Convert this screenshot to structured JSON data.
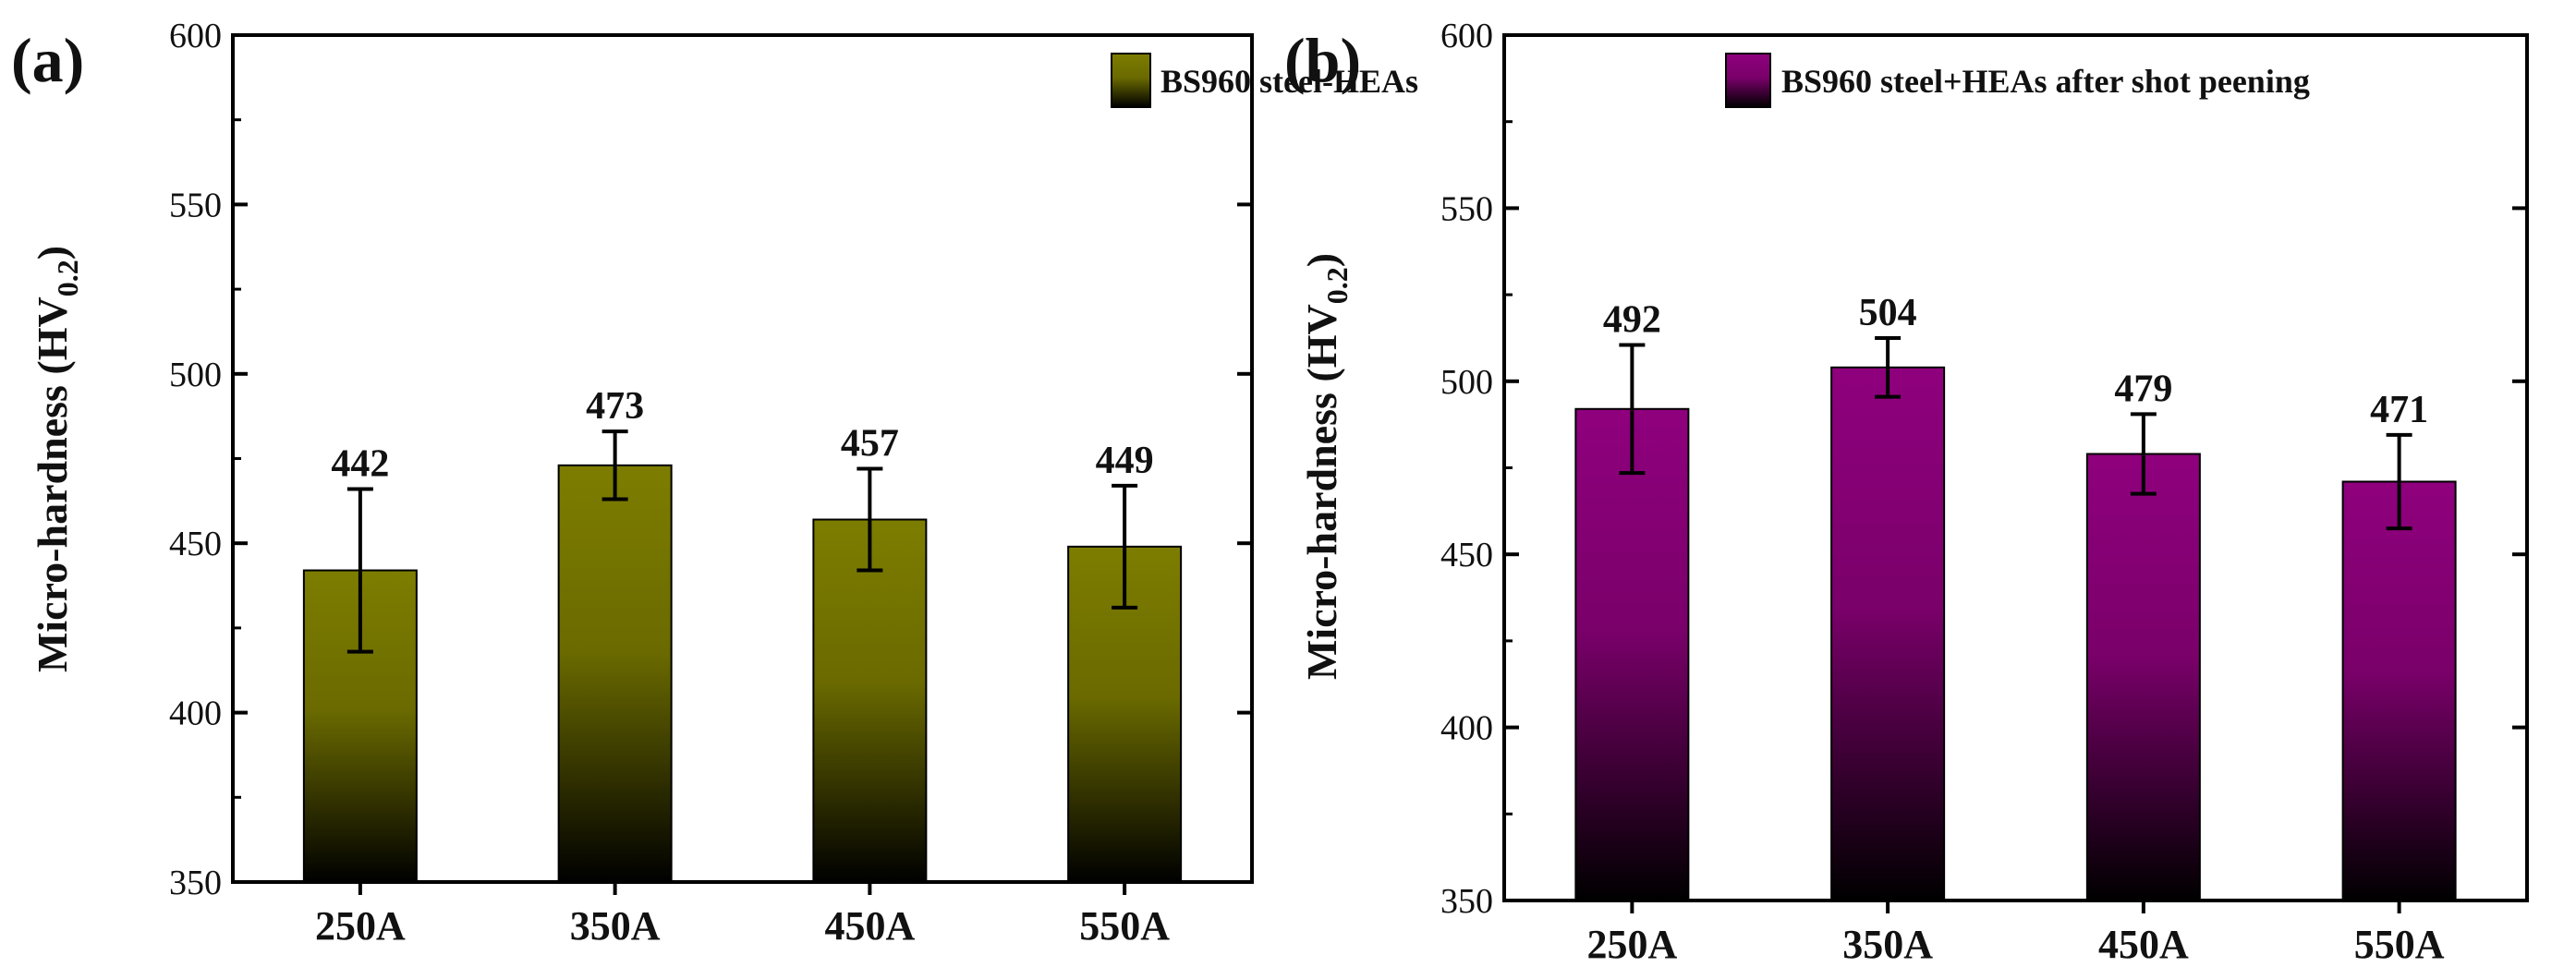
{
  "chart_data": [
    {
      "type": "bar",
      "panel_label": "(a)",
      "title": "",
      "xlabel": "",
      "ylabel_main": "Micro-hardness (HV",
      "ylabel_sub": "0.2",
      "ylabel_close": ")",
      "categories": [
        "250A",
        "350A",
        "450A",
        "550A"
      ],
      "values": [
        442,
        473,
        457,
        449
      ],
      "value_labels": [
        "442",
        "473",
        "457",
        "449"
      ],
      "errors": [
        24,
        10,
        15,
        18
      ],
      "ylim": [
        350,
        600
      ],
      "yticks": [
        350,
        400,
        450,
        500,
        550,
        600
      ],
      "yticklabels": [
        "350",
        "400",
        "450",
        "500",
        "550",
        "600"
      ],
      "legend": "BS960 steel-HEAs",
      "legend_position": "top-right",
      "color": "#7d7d00"
    },
    {
      "type": "bar",
      "panel_label": "(b)",
      "title": "",
      "xlabel": "",
      "ylabel_main": "Micro-hardness (HV",
      "ylabel_sub": "0.2",
      "ylabel_close": ")",
      "categories": [
        "250A",
        "350A",
        "450A",
        "550A"
      ],
      "values": [
        492,
        504,
        479,
        471
      ],
      "value_labels": [
        "492",
        "504",
        "479",
        "471"
      ],
      "errors": [
        18.5,
        8.5,
        11.5,
        13.5
      ],
      "ylim": [
        350,
        600
      ],
      "yticks": [
        350,
        400,
        450,
        500,
        550,
        600
      ],
      "yticklabels": [
        "350",
        "400",
        "450",
        "500",
        "550",
        "600"
      ],
      "legend": "BS960 steel+HEAs after shot peening",
      "legend_position": "top-right",
      "color": "#8f007d"
    }
  ]
}
